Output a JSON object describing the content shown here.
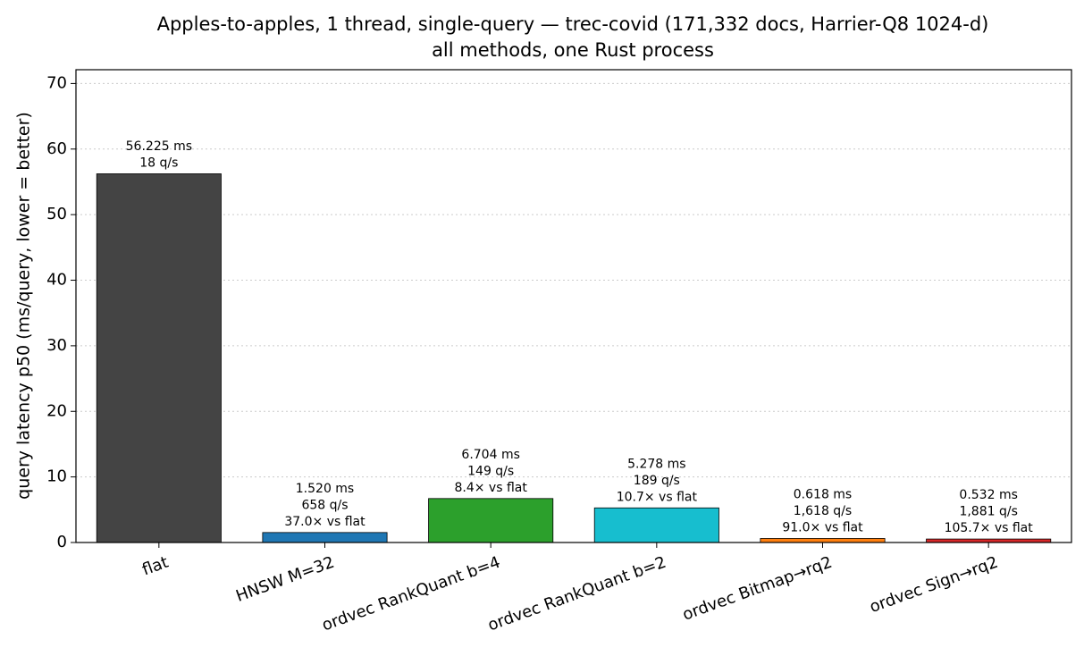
{
  "chart_data": {
    "type": "bar",
    "title": "Apples-to-apples, 1 thread, single-query — trec-covid (171,332 docs, Harrier-Q8 1024-d)",
    "subtitle": "all methods, one Rust process",
    "y_label": "query latency  p50 (ms/query, lower = better)",
    "categories": [
      "flat",
      "HNSW M=32",
      "ordvec RankQuant b=4",
      "ordvec RankQuant b=2",
      "ordvec Bitmap→rq2",
      "ordvec Sign→rq2"
    ],
    "values": [
      56.225,
      1.52,
      6.704,
      5.278,
      0.618,
      0.532
    ],
    "value_labels": [
      "56.225 ms",
      "1.520 ms",
      "6.704 ms",
      "5.278 ms",
      "0.618 ms",
      "0.532 ms"
    ],
    "annotations": [
      [
        "18 q/s"
      ],
      [
        "658 q/s",
        "37.0× vs flat"
      ],
      [
        "149 q/s",
        "8.4× vs flat"
      ],
      [
        "189 q/s",
        "10.7× vs flat"
      ],
      [
        "1,618 q/s",
        "91.0× vs flat"
      ],
      [
        "1,881 q/s",
        "105.7× vs flat"
      ]
    ],
    "colors": [
      "#444444",
      "#1f77b4",
      "#2ca02c",
      "#17becf",
      "#ff7f0e",
      "#d62728"
    ],
    "ylim": [
      0,
      72.1
    ],
    "yticks": [
      0,
      10,
      20,
      30,
      40,
      50,
      60,
      70
    ],
    "grid": true
  }
}
